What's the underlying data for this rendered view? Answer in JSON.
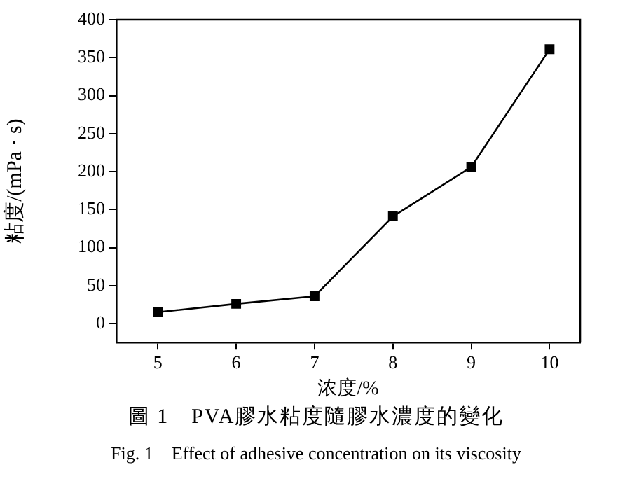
{
  "chart_data": {
    "type": "line",
    "title": "圖 1　PVA膠水粘度隨膠水濃度的變化",
    "subtitle": "Fig. 1　Effect of adhesive concentration on its viscosity",
    "xlabel": "浓度/%",
    "ylabel": "粘度/(mPa · s)",
    "x": [
      5,
      6,
      7,
      8,
      9,
      10
    ],
    "series": [
      {
        "color": "#000000",
        "values": [
          15,
          26,
          36,
          141,
          206,
          361
        ]
      }
    ],
    "xlim": [
      4.47,
      10.39
    ],
    "xticks": [
      5,
      6,
      7,
      8,
      9,
      10
    ],
    "ylim": [
      -25,
      400
    ],
    "yticks": [
      0,
      50,
      100,
      150,
      200,
      250,
      300,
      350,
      400
    ],
    "grid": false,
    "legend": false,
    "marker": "square",
    "line_style": "solid"
  }
}
